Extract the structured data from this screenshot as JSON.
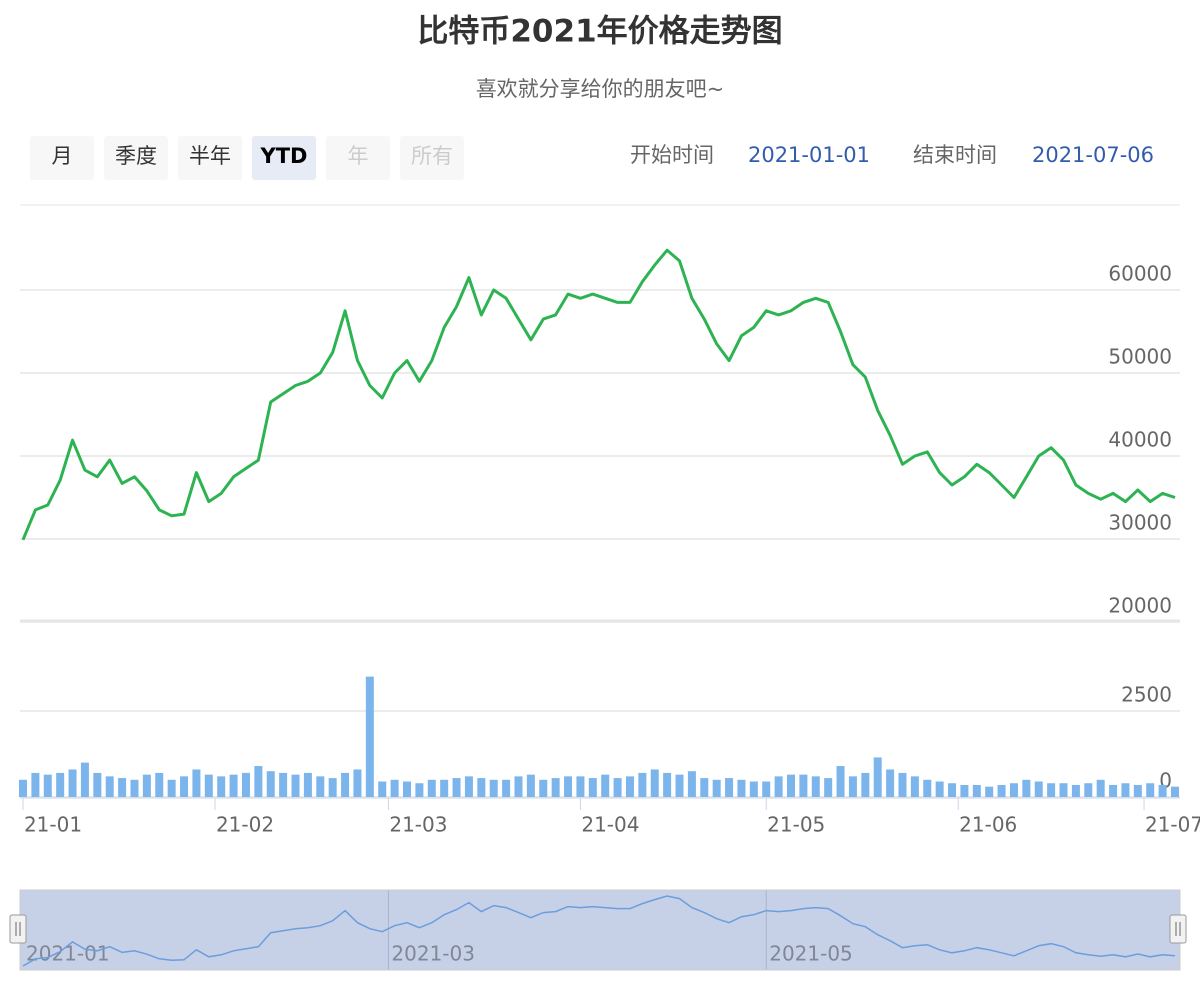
{
  "range_selector": {
    "buttons": [
      "月",
      "季度",
      "半年",
      "YTD",
      "年",
      "所有"
    ],
    "selected": 3,
    "disabled": [
      4,
      5
    ]
  },
  "date_range": {
    "start_label": "开始时间",
    "start": "2021-01-01",
    "end_label": "结束时间",
    "end": "2021-07-06"
  },
  "chart_data": {
    "type": "stock",
    "title": "比特币2021年价格走势图",
    "subtitle": "喜欢就分享给你的朋友吧~",
    "x": [
      "2021-01-01",
      "2021-01-03",
      "2021-01-05",
      "2021-01-07",
      "2021-01-09",
      "2021-01-11",
      "2021-01-13",
      "2021-01-15",
      "2021-01-17",
      "2021-01-19",
      "2021-01-21",
      "2021-01-23",
      "2021-01-25",
      "2021-01-27",
      "2021-01-29",
      "2021-01-31",
      "2021-02-02",
      "2021-02-04",
      "2021-02-06",
      "2021-02-08",
      "2021-02-10",
      "2021-02-12",
      "2021-02-14",
      "2021-02-16",
      "2021-02-18",
      "2021-02-20",
      "2021-02-22",
      "2021-02-24",
      "2021-02-26",
      "2021-02-28",
      "2021-03-02",
      "2021-03-04",
      "2021-03-06",
      "2021-03-08",
      "2021-03-10",
      "2021-03-12",
      "2021-03-14",
      "2021-03-16",
      "2021-03-18",
      "2021-03-20",
      "2021-03-22",
      "2021-03-24",
      "2021-03-26",
      "2021-03-28",
      "2021-03-30",
      "2021-04-01",
      "2021-04-03",
      "2021-04-05",
      "2021-04-07",
      "2021-04-09",
      "2021-04-11",
      "2021-04-13",
      "2021-04-15",
      "2021-04-17",
      "2021-04-19",
      "2021-04-21",
      "2021-04-23",
      "2021-04-25",
      "2021-04-27",
      "2021-04-29",
      "2021-05-01",
      "2021-05-03",
      "2021-05-05",
      "2021-05-07",
      "2021-05-09",
      "2021-05-11",
      "2021-05-13",
      "2021-05-15",
      "2021-05-17",
      "2021-05-19",
      "2021-05-21",
      "2021-05-23",
      "2021-05-25",
      "2021-05-27",
      "2021-05-29",
      "2021-05-31",
      "2021-06-02",
      "2021-06-04",
      "2021-06-06",
      "2021-06-08",
      "2021-06-10",
      "2021-06-12",
      "2021-06-14",
      "2021-06-16",
      "2021-06-18",
      "2021-06-20",
      "2021-06-22",
      "2021-06-24",
      "2021-06-26",
      "2021-06-28",
      "2021-06-30",
      "2021-07-02",
      "2021-07-04",
      "2021-07-06"
    ],
    "xlim": [
      "2021-01-01",
      "2021-07-06"
    ],
    "xticks": [
      {
        "value": "2021-01-01",
        "label": "21-01"
      },
      {
        "value": "2021-02-01",
        "label": "21-02"
      },
      {
        "value": "2021-03-01",
        "label": "21-03"
      },
      {
        "value": "2021-04-01",
        "label": "21-04"
      },
      {
        "value": "2021-05-01",
        "label": "21-05"
      },
      {
        "value": "2021-06-01",
        "label": "21-06"
      },
      {
        "value": "2021-07-01",
        "label": "21-07"
      }
    ],
    "price": {
      "type": "line",
      "color": "#2eb352",
      "ylim": [
        20000,
        70000
      ],
      "yticks": [
        20000,
        30000,
        40000,
        50000,
        60000
      ],
      "values": [
        29900,
        33500,
        34100,
        37100,
        41900,
        38300,
        37500,
        39500,
        36700,
        37500,
        35800,
        33500,
        32800,
        33000,
        38000,
        34500,
        35500,
        37500,
        38500,
        39500,
        46500,
        47500,
        48500,
        49000,
        50000,
        52500,
        57500,
        51500,
        48500,
        47000,
        50000,
        51500,
        49000,
        51500,
        55500,
        58000,
        61500,
        57000,
        60000,
        59000,
        56500,
        54000,
        56500,
        57000,
        59500,
        59000,
        59500,
        59000,
        58500,
        58500,
        61000,
        63000,
        64800,
        63500,
        59000,
        56500,
        53500,
        51500,
        54500,
        55500,
        57500,
        57000,
        57500,
        58500,
        59000,
        58500,
        55000,
        51000,
        49500,
        45500,
        42500,
        39000,
        40000,
        40500,
        38000,
        36500,
        37500,
        39000,
        38000,
        36500,
        35000,
        37500,
        40000,
        41000,
        39500,
        36500,
        35500,
        34800,
        35500,
        34500,
        35900,
        34500,
        35500,
        35000
      ]
    },
    "volume": {
      "type": "column",
      "color": "#7cb5ec",
      "ylim": [
        0,
        5000
      ],
      "yticks": [
        0,
        2500
      ],
      "values": [
        500,
        700,
        650,
        700,
        800,
        1000,
        700,
        600,
        550,
        500,
        650,
        700,
        500,
        600,
        800,
        650,
        600,
        650,
        700,
        900,
        750,
        700,
        650,
        700,
        600,
        550,
        700,
        800,
        3500,
        450,
        500,
        450,
        400,
        500,
        500,
        550,
        600,
        550,
        500,
        500,
        600,
        650,
        500,
        550,
        600,
        600,
        550,
        650,
        550,
        600,
        700,
        800,
        700,
        650,
        750,
        550,
        500,
        550,
        500,
        450,
        450,
        600,
        650,
        650,
        600,
        550,
        900,
        600,
        700,
        1150,
        800,
        700,
        600,
        500,
        450,
        400,
        350,
        350,
        300,
        350,
        400,
        500,
        450,
        400,
        400,
        350,
        400,
        500,
        350,
        400,
        350,
        400,
        350,
        300
      ]
    },
    "navigator": {
      "xticks": [
        {
          "value": "2021-01-01",
          "label": "2021-01"
        },
        {
          "value": "2021-03-01",
          "label": "2021-03"
        },
        {
          "value": "2021-05-01",
          "label": "2021-05"
        }
      ]
    }
  }
}
